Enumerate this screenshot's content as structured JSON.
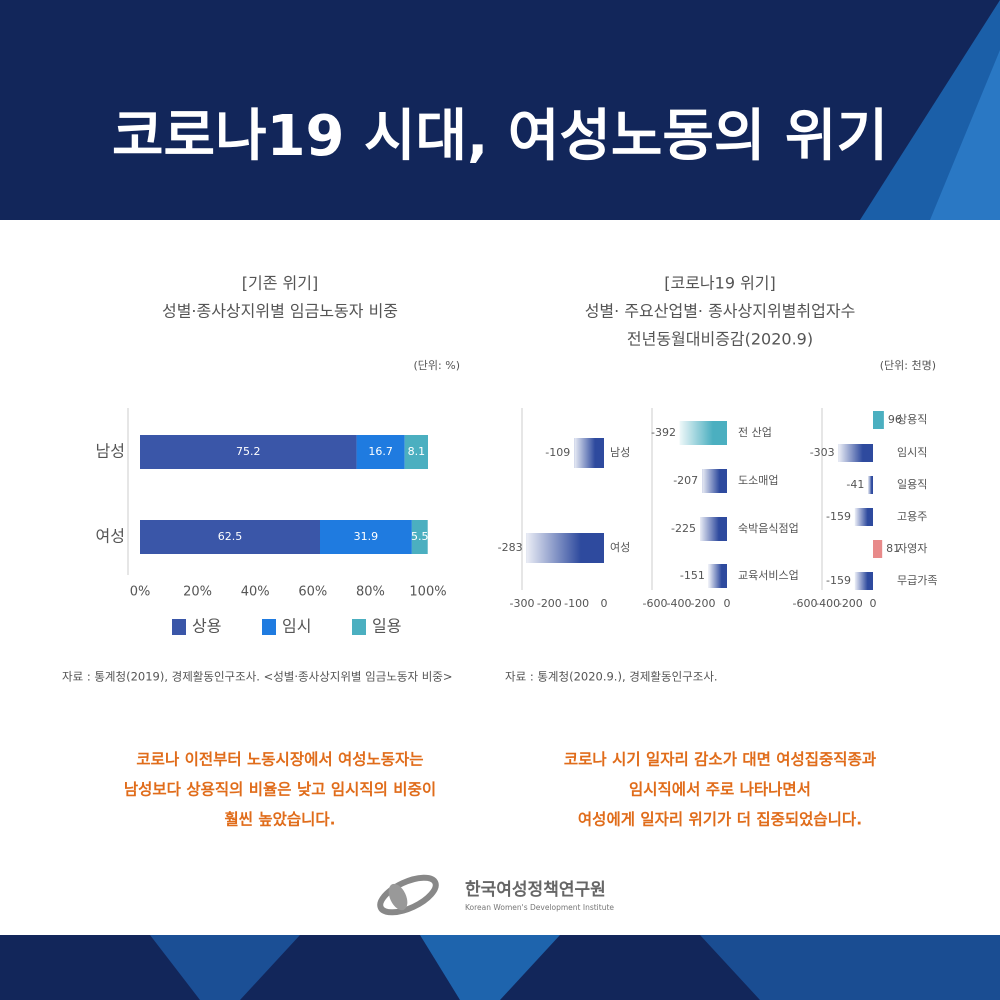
{
  "header": {
    "title": "코로나19 시대, 여성노동의 위기"
  },
  "chart_data": [
    {
      "type": "bar",
      "orientation": "horizontal",
      "stacked": true,
      "title": "[기존 위기]",
      "subtitle": "성별·종사상지위별 임금노동자 비중",
      "unit": "(단위: %)",
      "categories": [
        "남성",
        "여성"
      ],
      "series": [
        {
          "name": "상용",
          "color": "#3a56a8",
          "values": [
            75.2,
            62.5
          ]
        },
        {
          "name": "임시",
          "color": "#1f7be0",
          "values": [
            16.7,
            31.9
          ]
        },
        {
          "name": "일용",
          "color": "#4bafc0",
          "values": [
            8.1,
            5.5
          ]
        }
      ],
      "xlim": [
        0,
        100
      ],
      "xticks": [
        {
          "value": 0,
          "label": "0%"
        },
        {
          "value": 20,
          "label": "20%"
        },
        {
          "value": 40,
          "label": "40%"
        },
        {
          "value": 60,
          "label": "60%"
        },
        {
          "value": 80,
          "label": "80%"
        },
        {
          "value": 100,
          "label": "100%"
        }
      ],
      "source": "자료 : 통계청(2019), 경제활동인구조사. <성별·종사상지위별 임금노동자 비중>"
    },
    {
      "type": "bar",
      "orientation": "horizontal",
      "categories": [
        "남성",
        "여성"
      ],
      "values": [
        -109,
        -283
      ],
      "colors": [
        "#2e4a9e",
        "#2e4a9e"
      ],
      "xlim": [
        -300,
        0
      ],
      "xticks": [
        -300,
        -200,
        -100,
        0
      ]
    },
    {
      "type": "bar",
      "orientation": "horizontal",
      "categories": [
        "전 산업",
        "도소매업",
        "숙박음식점업",
        "교육서비스업"
      ],
      "values": [
        -392,
        -207,
        -225,
        -151
      ],
      "colors": [
        "#4bafc0",
        "#2e4a9e",
        "#2e4a9e",
        "#2e4a9e"
      ],
      "xlim": [
        -600,
        0
      ],
      "xticks": [
        -600,
        -400,
        -200,
        0
      ]
    },
    {
      "type": "bar",
      "orientation": "horizontal",
      "categories": [
        "상용직",
        "임시직",
        "일용직",
        "고용주",
        "자영자",
        "무급가족"
      ],
      "values": [
        96,
        -303,
        -41,
        -159,
        81,
        -159
      ],
      "colors": [
        "#4bafc0",
        "#2e4a9e",
        "#2e4a9e",
        "#2e4a9e",
        "#e88a8a",
        "#2e4a9e"
      ],
      "xlim": [
        -600,
        150
      ],
      "xticks": [
        -600,
        -400,
        -200,
        0
      ]
    }
  ],
  "covid_panel": {
    "title": "[코로나19 위기]",
    "subtitle": [
      "성별· 주요산업별· 종사상지위별취업자수",
      "전년동월대비증감(2020.9)"
    ],
    "unit": "(단위: 천명)",
    "source": "자료 : 통계청(2020.9.), 경제활동인구조사."
  },
  "captions": [
    [
      "코로나 이전부터 노동시장에서 여성노동자는",
      "남성보다 상용직의 비율은 낮고 임시직의 비중이",
      "훨씬 높았습니다."
    ],
    [
      "코로나 시기 일자리 감소가 대면 여성집중직종과",
      "임시직에서 주로 나타나면서",
      "여성에게 일자리 위기가 더 집중되었습니다."
    ]
  ],
  "logo": {
    "name": "한국여성정책연구원",
    "english": "Korean Women's Development Institute"
  }
}
